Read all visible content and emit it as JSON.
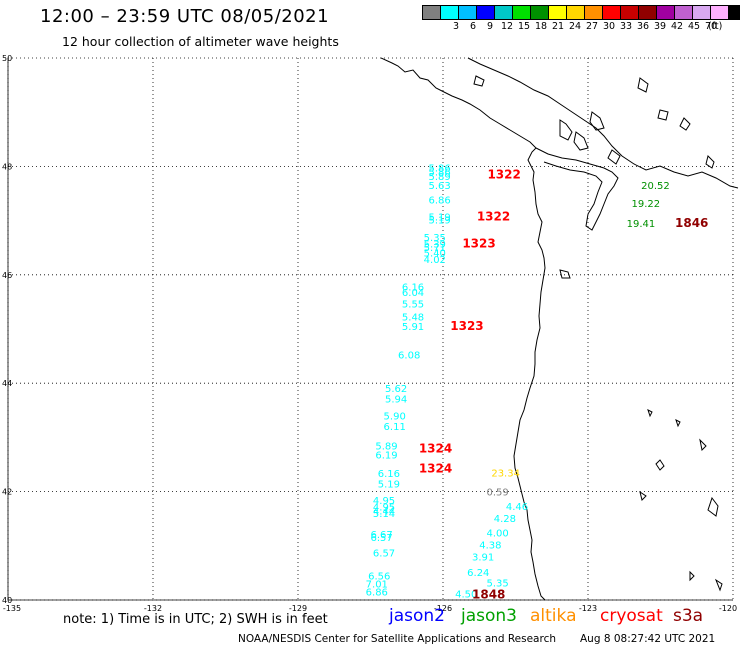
{
  "title": "12:00 – 23:59 UTC 08/05/2021",
  "subtitle": "12 hour collection of altimeter wave heights",
  "legend": {
    "unit": "(ft)",
    "swatches": [
      {
        "color": "#808080",
        "label": ""
      },
      {
        "color": "#00ffff",
        "label": "3"
      },
      {
        "color": "#00bfff",
        "label": "6"
      },
      {
        "color": "#0000ff",
        "label": "9"
      },
      {
        "color": "#00c8c8",
        "label": "12"
      },
      {
        "color": "#00e000",
        "label": "15"
      },
      {
        "color": "#009000",
        "label": "18"
      },
      {
        "color": "#ffff00",
        "label": "21"
      },
      {
        "color": "#ffd700",
        "label": "24"
      },
      {
        "color": "#ff9000",
        "label": "27"
      },
      {
        "color": "#ff0000",
        "label": "30"
      },
      {
        "color": "#c80000",
        "label": "33"
      },
      {
        "color": "#900000",
        "label": "36"
      },
      {
        "color": "#a000a0",
        "label": "39"
      },
      {
        "color": "#c060d0",
        "label": "42"
      },
      {
        "color": "#d8a8f0",
        "label": "45"
      },
      {
        "color": "#ffb0ff",
        "label": "70"
      },
      {
        "color": "#000000",
        "label": ""
      }
    ]
  },
  "axes": {
    "lat_labels": [
      "50",
      "48",
      "46",
      "44",
      "42",
      "40"
    ],
    "lon_labels": [
      "-135",
      "-132",
      "-129",
      "-126",
      "-123",
      "-120"
    ]
  },
  "chart_data": {
    "type": "scatter",
    "title": "12:00 – 23:59 UTC 08/05/2021",
    "xlim": [
      -135,
      -120
    ],
    "ylim": [
      40,
      50
    ],
    "points": [
      {
        "lon": -126.3,
        "lat": 47.91,
        "text": "5.86",
        "color": "#00ffff"
      },
      {
        "lon": -126.3,
        "lat": 47.83,
        "text": "5.86",
        "color": "#00ffff"
      },
      {
        "lon": -126.3,
        "lat": 47.75,
        "text": "5.89",
        "color": "#00ffff"
      },
      {
        "lon": -126.3,
        "lat": 47.58,
        "text": "5.63",
        "color": "#00ffff"
      },
      {
        "lon": -126.3,
        "lat": 47.32,
        "text": "6.86",
        "color": "#00ffff"
      },
      {
        "lon": -126.3,
        "lat": 47.0,
        "text": "5.19",
        "color": "#00ffff"
      },
      {
        "lon": -126.3,
        "lat": 46.95,
        "text": "5.19",
        "color": "#00ffff"
      },
      {
        "lon": -126.4,
        "lat": 46.62,
        "text": "5.35",
        "color": "#00ffff"
      },
      {
        "lon": -126.4,
        "lat": 46.5,
        "text": "5.39",
        "color": "#00ffff"
      },
      {
        "lon": -126.4,
        "lat": 46.44,
        "text": "5.71",
        "color": "#00ffff"
      },
      {
        "lon": -126.4,
        "lat": 46.34,
        "text": "5.40",
        "color": "#00ffff"
      },
      {
        "lon": -126.4,
        "lat": 46.22,
        "text": "4.02",
        "color": "#00ffff"
      },
      {
        "lon": -126.85,
        "lat": 45.71,
        "text": "6.16",
        "color": "#00ffff"
      },
      {
        "lon": -126.85,
        "lat": 45.61,
        "text": "6.04",
        "color": "#00ffff"
      },
      {
        "lon": -126.85,
        "lat": 45.4,
        "text": "5.55",
        "color": "#00ffff"
      },
      {
        "lon": -126.85,
        "lat": 45.16,
        "text": "5.48",
        "color": "#00ffff"
      },
      {
        "lon": -126.85,
        "lat": 44.98,
        "text": "5.91",
        "color": "#00ffff"
      },
      {
        "lon": -126.93,
        "lat": 44.46,
        "text": "6.08",
        "color": "#00ffff"
      },
      {
        "lon": -127.2,
        "lat": 43.84,
        "text": "5.62",
        "color": "#00ffff"
      },
      {
        "lon": -127.2,
        "lat": 43.64,
        "text": "5.94",
        "color": "#00ffff"
      },
      {
        "lon": -127.23,
        "lat": 43.33,
        "text": "5.90",
        "color": "#00ffff"
      },
      {
        "lon": -127.23,
        "lat": 43.14,
        "text": "6.11",
        "color": "#00ffff"
      },
      {
        "lon": -127.4,
        "lat": 42.78,
        "text": "5.89",
        "color": "#00ffff"
      },
      {
        "lon": -127.4,
        "lat": 42.61,
        "text": "6.19",
        "color": "#00ffff"
      },
      {
        "lon": -127.35,
        "lat": 42.27,
        "text": "6.16",
        "color": "#00ffff"
      },
      {
        "lon": -127.35,
        "lat": 42.08,
        "text": "5.19",
        "color": "#00ffff"
      },
      {
        "lon": -127.45,
        "lat": 41.77,
        "text": "4.95",
        "color": "#00ffff"
      },
      {
        "lon": -127.45,
        "lat": 41.65,
        "text": "4.95",
        "color": "#00ffff"
      },
      {
        "lon": -127.45,
        "lat": 41.58,
        "text": "4.44",
        "color": "#00ffff"
      },
      {
        "lon": -127.45,
        "lat": 41.53,
        "text": "5.14",
        "color": "#00ffff"
      },
      {
        "lon": -127.5,
        "lat": 41.14,
        "text": "6.67",
        "color": "#00ffff"
      },
      {
        "lon": -127.5,
        "lat": 41.09,
        "text": "6.57",
        "color": "#00ffff"
      },
      {
        "lon": -127.45,
        "lat": 40.8,
        "text": "6.57",
        "color": "#00ffff"
      },
      {
        "lon": -127.55,
        "lat": 40.38,
        "text": "6.56",
        "color": "#00ffff"
      },
      {
        "lon": -127.6,
        "lat": 40.23,
        "text": "7.01",
        "color": "#00ffff"
      },
      {
        "lon": -127.6,
        "lat": 40.08,
        "text": "6.86",
        "color": "#00ffff"
      },
      {
        "lon": -125.1,
        "lat": 41.93,
        "text": "0.59",
        "color": "#808080"
      },
      {
        "lon": -124.7,
        "lat": 41.66,
        "text": "4.46",
        "color": "#00ffff"
      },
      {
        "lon": -124.95,
        "lat": 41.44,
        "text": "4.28",
        "color": "#00ffff"
      },
      {
        "lon": -125.1,
        "lat": 41.17,
        "text": "4.00",
        "color": "#00ffff"
      },
      {
        "lon": -125.25,
        "lat": 40.95,
        "text": "4.38",
        "color": "#00ffff"
      },
      {
        "lon": -125.4,
        "lat": 40.73,
        "text": "3.91",
        "color": "#00ffff"
      },
      {
        "lon": -125.5,
        "lat": 40.44,
        "text": "6.24",
        "color": "#00ffff"
      },
      {
        "lon": -125.1,
        "lat": 40.25,
        "text": "5.35",
        "color": "#00ffff"
      },
      {
        "lon": -125.75,
        "lat": 40.05,
        "text": "4.50",
        "color": "#00ffff"
      },
      {
        "lon": -125.0,
        "lat": 42.28,
        "text": "23.34",
        "color": "#ffd700"
      },
      {
        "lon": -121.9,
        "lat": 47.58,
        "text": "20.52",
        "color": "#009000"
      },
      {
        "lon": -122.1,
        "lat": 47.25,
        "text": "19.22",
        "color": "#009000"
      },
      {
        "lon": -122.2,
        "lat": 46.88,
        "text": "19.41",
        "color": "#009000"
      }
    ],
    "track_labels": [
      {
        "lon": -125.08,
        "lat": 47.78,
        "text": "1322",
        "color": "#ff0000"
      },
      {
        "lon": -125.3,
        "lat": 47.0,
        "text": "1322",
        "color": "#ff0000"
      },
      {
        "lon": -125.6,
        "lat": 46.5,
        "text": "1323",
        "color": "#ff0000"
      },
      {
        "lon": -125.85,
        "lat": 44.98,
        "text": "1323",
        "color": "#ff0000"
      },
      {
        "lon": -126.5,
        "lat": 42.72,
        "text": "1324",
        "color": "#ff0000"
      },
      {
        "lon": -126.5,
        "lat": 42.35,
        "text": "1324",
        "color": "#ff0000"
      },
      {
        "lon": -121.2,
        "lat": 46.88,
        "text": "1846",
        "color": "#900000"
      },
      {
        "lon": -125.4,
        "lat": 40.03,
        "text": "1848",
        "color": "#900000"
      }
    ]
  },
  "footer": {
    "note": "note: 1) Time is in UTC; 2) SWH is in feet",
    "satellites": [
      {
        "name": "jason2",
        "color": "#0000ff"
      },
      {
        "name": "jason3",
        "color": "#00a000"
      },
      {
        "name": "altika",
        "color": "#ff9000"
      },
      {
        "name": "cryosat",
        "color": "#ff0000"
      },
      {
        "name": "s3a",
        "color": "#900000"
      }
    ],
    "credit": "NOAA/NESDIS Center for Satellite Applications and Research",
    "timestamp": "Aug  8 08:27:42 UTC 2021"
  }
}
